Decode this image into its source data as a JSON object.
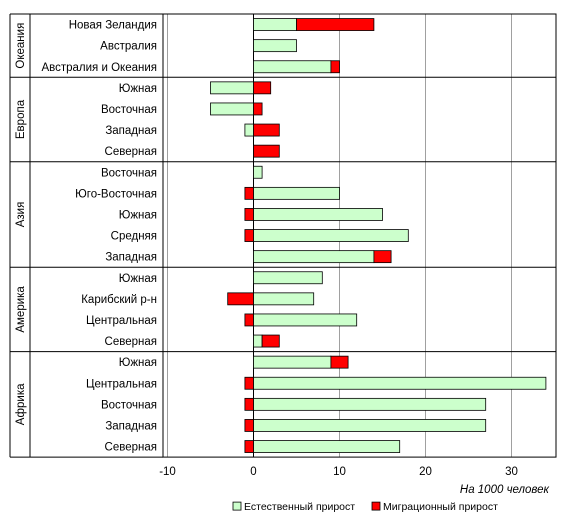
{
  "chart_data": {
    "type": "bar",
    "orientation": "horizontal",
    "stacked": true,
    "groups": [
      {
        "name": "Океания",
        "categories": [
          "Новая Зеландия",
          "Австралия",
          "Австралия и Океания"
        ]
      },
      {
        "name": "Европа",
        "categories": [
          "Южная",
          "Восточная",
          "Западная",
          "Северная"
        ]
      },
      {
        "name": "Азия",
        "categories": [
          "Восточная",
          "Юго-Восточная",
          "Южная",
          "Средняя",
          "Западная"
        ]
      },
      {
        "name": "Америка",
        "categories": [
          "Южная",
          "Карибский р-н",
          "Центральная",
          "Северная"
        ]
      },
      {
        "name": "Африка",
        "categories": [
          "Южная",
          "Центральная",
          "Восточная",
          "Западная",
          "Северная"
        ]
      }
    ],
    "series": [
      {
        "name": "Естественный прирост",
        "color": "#ccffcc",
        "values": [
          5,
          5,
          9,
          -5,
          -5,
          -1,
          0,
          1,
          10,
          15,
          18,
          14,
          8,
          7,
          12,
          1,
          9,
          34,
          27,
          27,
          17
        ]
      },
      {
        "name": "Миграционный прирост",
        "color": "#ff0000",
        "values": [
          9,
          0,
          1,
          2,
          1,
          3,
          3,
          0,
          -1,
          -1,
          -1,
          2,
          0,
          -3,
          -1,
          2,
          2,
          -1,
          -1,
          -1,
          -1
        ]
      }
    ],
    "x_ticks": [
      -10,
      0,
      10,
      20,
      30
    ],
    "xlim": [
      -11,
      35
    ],
    "xlabel": "На 1000 человек",
    "grid": true,
    "legend_position": "bottom"
  }
}
